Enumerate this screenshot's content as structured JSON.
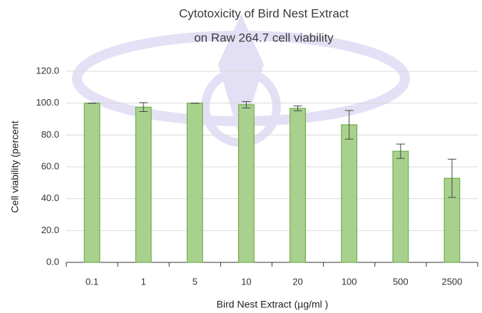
{
  "chart_data": {
    "type": "bar",
    "title": [
      "Cytotoxicity of Bird Nest Extract",
      "on Raw 264.7 cell viability"
    ],
    "x_label": "Bird Nest Extract (µg/ml )",
    "y_label": "Cell viability (percent",
    "categories": [
      "0.1",
      "1",
      "5",
      "10",
      "20",
      "100",
      "500",
      "2500"
    ],
    "values": [
      100,
      97.5,
      100,
      99,
      96.7,
      86.4,
      69.8,
      52.8
    ],
    "errors": [
      0,
      2.8,
      0,
      2,
      1.5,
      9,
      4.5,
      12
    ],
    "color": "#a9d18e",
    "edge_color": "#70ad47",
    "ylim": [
      0,
      120
    ],
    "yticks": [
      {
        "value": 0,
        "label": "0.0"
      },
      {
        "value": 20,
        "label": "20.0"
      },
      {
        "value": 40,
        "label": "40.0"
      },
      {
        "value": 60,
        "label": "60.0"
      },
      {
        "value": 80,
        "label": "80.0"
      },
      {
        "value": 100,
        "label": "100.0"
      },
      {
        "value": 120,
        "label": "120.0"
      }
    ],
    "grid": true
  }
}
